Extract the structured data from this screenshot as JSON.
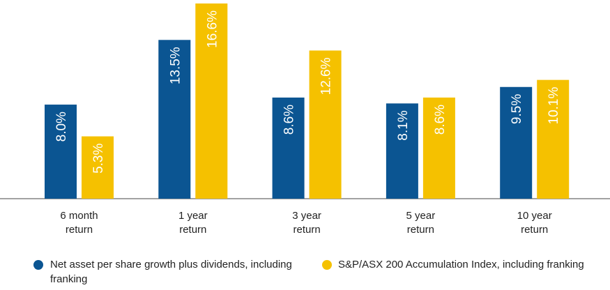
{
  "chart_data": {
    "type": "bar",
    "categories": [
      "6 month return",
      "1 year return",
      "3 year return",
      "5 year return",
      "10 year return"
    ],
    "series": [
      {
        "name": "Net asset per share growth plus dividends, including franking",
        "color": "#0b5592",
        "values": [
          8.0,
          13.5,
          8.6,
          8.1,
          9.5
        ],
        "value_labels": [
          "8.0%",
          "13.5%",
          "8.6%",
          "8.1%",
          "9.5%"
        ]
      },
      {
        "name": "S&P/ASX 200 Accumulation Index, including franking",
        "color": "#f5c100",
        "values": [
          5.3,
          16.6,
          12.6,
          8.6,
          10.1
        ],
        "value_labels": [
          "5.3%",
          "16.6%",
          "12.6%",
          "8.6%",
          "10.1%"
        ]
      }
    ]
  }
}
